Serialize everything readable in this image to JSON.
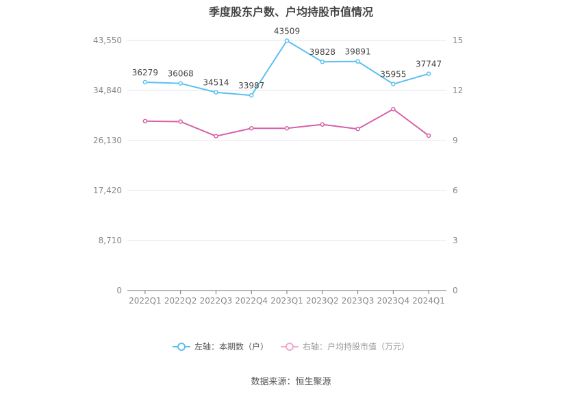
{
  "title": "季度股东户数、户均持股市值情况",
  "source": "数据来源：恒生聚源",
  "colors": {
    "left_series": "#5bc0f0",
    "right_series": "#d660a8",
    "right_series_legend": "#f0a8cc",
    "grid": "#e0e4ef",
    "axis_text": "#888888"
  },
  "legend": [
    {
      "label": "左轴：本期数（户）",
      "color": "#5bc0f0"
    },
    {
      "label": "右轴：户均持股市值（万元）",
      "color": "#f0a8cc"
    }
  ],
  "chart_data": {
    "type": "line",
    "title": "季度股东户数、户均持股市值情况",
    "categories": [
      "2022Q1",
      "2022Q2",
      "2022Q3",
      "2022Q4",
      "2023Q1",
      "2023Q2",
      "2023Q3",
      "2023Q4",
      "2024Q1"
    ],
    "series": [
      {
        "name": "左轴：本期数（户）",
        "axis": "left",
        "values": [
          36279,
          36068,
          34514,
          33987,
          43509,
          39828,
          39891,
          35955,
          37747
        ],
        "labels_shown": true
      },
      {
        "name": "右轴：户均持股市值（万元）",
        "axis": "right",
        "values": [
          10.16,
          10.13,
          9.26,
          9.73,
          9.73,
          9.96,
          9.69,
          10.88,
          9.29
        ],
        "labels_shown": false
      }
    ],
    "left_axis": {
      "ticks": [
        "0",
        "8,710",
        "17,420",
        "26,130",
        "34,840",
        "43,550"
      ],
      "ylim": [
        0,
        43550
      ]
    },
    "right_axis": {
      "ticks": [
        "0",
        "3",
        "6",
        "9",
        "12",
        "15"
      ],
      "ylim": [
        0,
        15
      ]
    },
    "grid": true,
    "legend_position": "bottom"
  }
}
